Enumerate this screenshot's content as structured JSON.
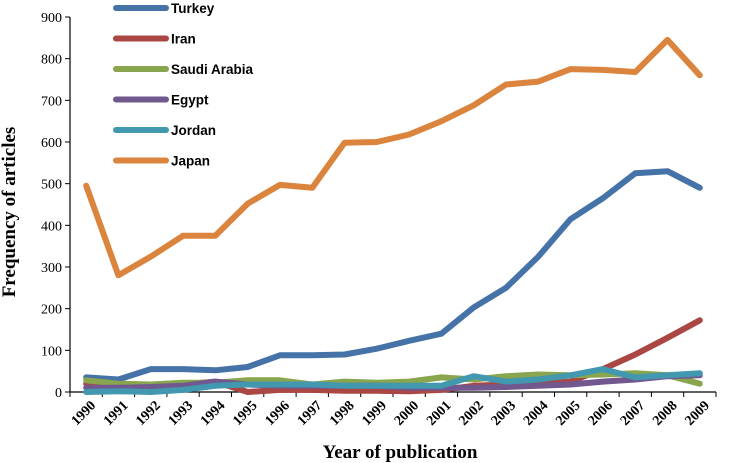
{
  "chart_data": {
    "type": "line",
    "title": "",
    "xlabel": "Year of publication",
    "ylabel": "Frequency of articles",
    "ylim": [
      0,
      900
    ],
    "yticks": [
      0,
      100,
      200,
      300,
      400,
      500,
      600,
      700,
      800,
      900
    ],
    "categories": [
      "1990",
      "1991",
      "1992",
      "1993",
      "1994",
      "1995",
      "1996",
      "1997",
      "1998",
      "1999",
      "2000",
      "2001",
      "2002",
      "2003",
      "2004",
      "2005",
      "2006",
      "2007",
      "2008",
      "2009"
    ],
    "legend_position": "top-left",
    "grid": false,
    "series": [
      {
        "name": "Turkey",
        "color": "#4572a7",
        "values": [
          35,
          30,
          55,
          55,
          52,
          60,
          88,
          88,
          90,
          104,
          123,
          140,
          203,
          250,
          325,
          415,
          465,
          525,
          530,
          490
        ]
      },
      {
        "name": "Iran",
        "color": "#aa4643",
        "values": [
          20,
          15,
          15,
          18,
          25,
          0,
          5,
          5,
          3,
          3,
          2,
          5,
          15,
          18,
          20,
          25,
          55,
          90,
          130,
          172
        ]
      },
      {
        "name": "Saudi Arabia",
        "color": "#89a54e",
        "values": [
          28,
          20,
          18,
          22,
          22,
          28,
          28,
          18,
          25,
          22,
          25,
          35,
          30,
          38,
          42,
          40,
          42,
          45,
          40,
          20
        ]
      },
      {
        "name": "Egypt",
        "color": "#71588f",
        "values": [
          10,
          10,
          12,
          15,
          25,
          18,
          15,
          15,
          15,
          15,
          10,
          10,
          10,
          12,
          15,
          18,
          25,
          30,
          38,
          40
        ]
      },
      {
        "name": "Jordan",
        "color": "#4198af",
        "values": [
          0,
          2,
          0,
          5,
          15,
          18,
          18,
          18,
          15,
          15,
          15,
          15,
          38,
          25,
          30,
          40,
          55,
          35,
          40,
          45
        ]
      },
      {
        "name": "Japan",
        "color": "#db843d",
        "values": [
          495,
          280,
          325,
          375,
          375,
          452,
          497,
          490,
          598,
          600,
          618,
          650,
          688,
          738,
          745,
          775,
          773,
          768,
          845,
          760
        ]
      }
    ]
  }
}
